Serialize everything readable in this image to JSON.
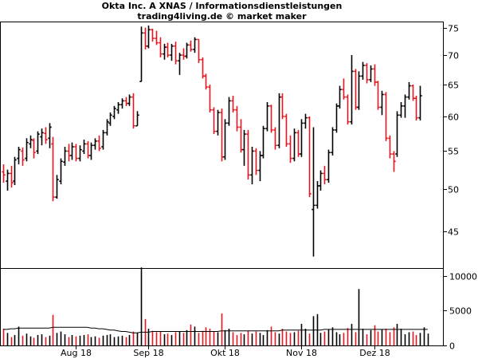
{
  "chart_data": [
    {
      "type": "ohlc-bar",
      "title": "Okta Inc. A XNAS / Informationsdienstleistungen",
      "subtitle": "trading4living.de © market maker",
      "y_ticks": [
        75,
        70,
        65,
        60,
        55,
        50,
        45
      ],
      "ylim": [
        41,
        76
      ],
      "x_ticks": [
        "Aug 18",
        "Sep 18",
        "Okt 18",
        "Nov 18",
        "Dez 18"
      ],
      "up_color": "#000000",
      "down_color": "#e8141e",
      "bars": [
        {
          "o": 52.2,
          "h": 53.2,
          "l": 50.8,
          "c": 51.8,
          "up": false
        },
        {
          "o": 51.0,
          "h": 52.5,
          "l": 49.8,
          "c": 52.0,
          "up": true
        },
        {
          "o": 52.0,
          "h": 53.0,
          "l": 50.2,
          "c": 50.8,
          "up": false
        },
        {
          "o": 51.0,
          "h": 54.2,
          "l": 50.5,
          "c": 53.8,
          "up": true
        },
        {
          "o": 54.0,
          "h": 55.6,
          "l": 53.2,
          "c": 55.2,
          "up": true
        },
        {
          "o": 55.0,
          "h": 55.5,
          "l": 53.0,
          "c": 53.8,
          "up": false
        },
        {
          "o": 54.0,
          "h": 56.8,
          "l": 53.6,
          "c": 56.2,
          "up": true
        },
        {
          "o": 56.0,
          "h": 57.2,
          "l": 55.4,
          "c": 56.6,
          "up": true
        },
        {
          "o": 56.5,
          "h": 56.8,
          "l": 54.0,
          "c": 54.8,
          "up": false
        },
        {
          "o": 55.0,
          "h": 57.8,
          "l": 54.6,
          "c": 57.4,
          "up": true
        },
        {
          "o": 57.0,
          "h": 58.2,
          "l": 55.8,
          "c": 57.6,
          "up": true
        },
        {
          "o": 57.5,
          "h": 58.4,
          "l": 56.0,
          "c": 56.6,
          "up": false
        },
        {
          "o": 56.8,
          "h": 59.0,
          "l": 55.4,
          "c": 58.4,
          "up": true
        },
        {
          "o": 56.0,
          "h": 57.0,
          "l": 48.5,
          "c": 49.0,
          "up": false
        },
        {
          "o": 49.0,
          "h": 51.8,
          "l": 48.8,
          "c": 51.2,
          "up": true
        },
        {
          "o": 51.0,
          "h": 54.0,
          "l": 50.6,
          "c": 53.6,
          "up": true
        },
        {
          "o": 53.5,
          "h": 55.6,
          "l": 53.0,
          "c": 55.0,
          "up": true
        },
        {
          "o": 55.0,
          "h": 56.0,
          "l": 53.6,
          "c": 54.4,
          "up": false
        },
        {
          "o": 54.4,
          "h": 56.2,
          "l": 53.8,
          "c": 55.6,
          "up": true
        },
        {
          "o": 55.6,
          "h": 56.0,
          "l": 53.6,
          "c": 54.0,
          "up": false
        },
        {
          "o": 54.0,
          "h": 55.8,
          "l": 53.6,
          "c": 55.2,
          "up": true
        },
        {
          "o": 55.0,
          "h": 56.6,
          "l": 54.6,
          "c": 56.0,
          "up": true
        },
        {
          "o": 56.0,
          "h": 56.4,
          "l": 54.0,
          "c": 54.4,
          "up": false
        },
        {
          "o": 54.4,
          "h": 56.2,
          "l": 53.8,
          "c": 55.8,
          "up": true
        },
        {
          "o": 55.8,
          "h": 56.8,
          "l": 55.2,
          "c": 56.4,
          "up": true
        },
        {
          "o": 56.4,
          "h": 57.2,
          "l": 55.0,
          "c": 55.4,
          "up": false
        },
        {
          "o": 55.6,
          "h": 58.0,
          "l": 55.2,
          "c": 57.6,
          "up": true
        },
        {
          "o": 57.6,
          "h": 59.6,
          "l": 57.2,
          "c": 59.2,
          "up": true
        },
        {
          "o": 59.0,
          "h": 60.6,
          "l": 58.6,
          "c": 60.2,
          "up": true
        },
        {
          "o": 60.0,
          "h": 61.6,
          "l": 59.6,
          "c": 61.2,
          "up": true
        },
        {
          "o": 61.0,
          "h": 62.2,
          "l": 60.4,
          "c": 61.8,
          "up": true
        },
        {
          "o": 61.8,
          "h": 62.8,
          "l": 61.2,
          "c": 62.4,
          "up": true
        },
        {
          "o": 62.4,
          "h": 63.0,
          "l": 61.6,
          "c": 62.0,
          "up": false
        },
        {
          "o": 62.0,
          "h": 63.4,
          "l": 61.6,
          "c": 63.0,
          "up": true
        },
        {
          "o": 63.0,
          "h": 63.6,
          "l": 58.2,
          "c": 58.6,
          "up": false
        },
        {
          "o": 58.6,
          "h": 60.8,
          "l": 58.6,
          "c": 60.2,
          "up": true
        },
        {
          "o": 65.5,
          "h": 75.2,
          "l": 65.5,
          "c": 74.0,
          "up": true
        },
        {
          "o": 74.0,
          "h": 75.0,
          "l": 71.0,
          "c": 71.6,
          "up": false
        },
        {
          "o": 71.6,
          "h": 75.4,
          "l": 71.2,
          "c": 74.6,
          "up": true
        },
        {
          "o": 74.6,
          "h": 74.8,
          "l": 72.4,
          "c": 73.0,
          "up": false
        },
        {
          "o": 73.0,
          "h": 74.4,
          "l": 71.8,
          "c": 72.2,
          "up": false
        },
        {
          "o": 72.2,
          "h": 73.2,
          "l": 69.6,
          "c": 70.2,
          "up": false
        },
        {
          "o": 70.2,
          "h": 72.0,
          "l": 69.2,
          "c": 71.4,
          "up": true
        },
        {
          "o": 71.4,
          "h": 72.2,
          "l": 69.6,
          "c": 70.0,
          "up": false
        },
        {
          "o": 70.0,
          "h": 72.0,
          "l": 69.0,
          "c": 71.6,
          "up": true
        },
        {
          "o": 71.6,
          "h": 72.4,
          "l": 68.4,
          "c": 69.0,
          "up": false
        },
        {
          "o": 69.0,
          "h": 70.4,
          "l": 66.6,
          "c": 70.0,
          "up": true
        },
        {
          "o": 70.0,
          "h": 71.2,
          "l": 69.2,
          "c": 69.8,
          "up": false
        },
        {
          "o": 69.8,
          "h": 72.2,
          "l": 69.4,
          "c": 71.8,
          "up": true
        },
        {
          "o": 71.8,
          "h": 72.6,
          "l": 70.6,
          "c": 71.0,
          "up": false
        },
        {
          "o": 71.0,
          "h": 73.2,
          "l": 70.4,
          "c": 72.8,
          "up": true
        },
        {
          "o": 72.8,
          "h": 72.8,
          "l": 68.6,
          "c": 69.2,
          "up": false
        },
        {
          "o": 69.2,
          "h": 69.6,
          "l": 66.0,
          "c": 66.4,
          "up": false
        },
        {
          "o": 66.4,
          "h": 66.8,
          "l": 64.2,
          "c": 64.6,
          "up": false
        },
        {
          "o": 64.6,
          "h": 65.0,
          "l": 60.6,
          "c": 61.0,
          "up": false
        },
        {
          "o": 61.0,
          "h": 61.4,
          "l": 57.4,
          "c": 57.8,
          "up": false
        },
        {
          "o": 57.8,
          "h": 61.0,
          "l": 57.2,
          "c": 60.6,
          "up": true
        },
        {
          "o": 60.6,
          "h": 61.2,
          "l": 53.6,
          "c": 54.2,
          "up": false
        },
        {
          "o": 54.2,
          "h": 59.6,
          "l": 53.8,
          "c": 59.0,
          "up": true
        },
        {
          "o": 59.0,
          "h": 63.0,
          "l": 58.6,
          "c": 62.4,
          "up": true
        },
        {
          "o": 62.4,
          "h": 63.2,
          "l": 60.6,
          "c": 61.0,
          "up": false
        },
        {
          "o": 61.0,
          "h": 61.6,
          "l": 57.8,
          "c": 58.4,
          "up": false
        },
        {
          "o": 58.4,
          "h": 59.6,
          "l": 54.8,
          "c": 55.2,
          "up": false
        },
        {
          "o": 55.2,
          "h": 58.0,
          "l": 53.0,
          "c": 57.4,
          "up": true
        },
        {
          "o": 57.4,
          "h": 58.0,
          "l": 51.2,
          "c": 51.8,
          "up": false
        },
        {
          "o": 51.8,
          "h": 55.6,
          "l": 50.6,
          "c": 55.0,
          "up": true
        },
        {
          "o": 55.0,
          "h": 55.4,
          "l": 51.8,
          "c": 52.4,
          "up": false
        },
        {
          "o": 52.4,
          "h": 55.0,
          "l": 51.0,
          "c": 54.4,
          "up": true
        },
        {
          "o": 54.4,
          "h": 58.6,
          "l": 54.0,
          "c": 58.2,
          "up": true
        },
        {
          "o": 58.2,
          "h": 62.2,
          "l": 57.8,
          "c": 61.6,
          "up": true
        },
        {
          "o": 61.6,
          "h": 61.8,
          "l": 57.6,
          "c": 58.0,
          "up": false
        },
        {
          "o": 58.0,
          "h": 58.4,
          "l": 55.2,
          "c": 55.8,
          "up": false
        },
        {
          "o": 55.8,
          "h": 63.6,
          "l": 55.4,
          "c": 63.0,
          "up": true
        },
        {
          "o": 63.0,
          "h": 63.6,
          "l": 59.6,
          "c": 60.0,
          "up": false
        },
        {
          "o": 60.0,
          "h": 60.4,
          "l": 55.6,
          "c": 56.0,
          "up": false
        },
        {
          "o": 56.0,
          "h": 57.2,
          "l": 53.4,
          "c": 54.0,
          "up": false
        },
        {
          "o": 54.0,
          "h": 58.2,
          "l": 53.6,
          "c": 57.6,
          "up": true
        },
        {
          "o": 57.6,
          "h": 58.0,
          "l": 54.2,
          "c": 54.6,
          "up": false
        },
        {
          "o": 54.6,
          "h": 59.6,
          "l": 54.2,
          "c": 59.0,
          "up": true
        },
        {
          "o": 59.0,
          "h": 60.4,
          "l": 58.2,
          "c": 59.8,
          "up": true
        },
        {
          "o": 59.8,
          "h": 60.0,
          "l": 49.0,
          "c": 49.4,
          "up": false
        },
        {
          "o": 47.5,
          "h": 58.4,
          "l": 42.2,
          "c": 48.0,
          "up": true
        },
        {
          "o": 48.0,
          "h": 51.0,
          "l": 47.6,
          "c": 50.4,
          "up": true
        },
        {
          "o": 50.4,
          "h": 52.4,
          "l": 49.8,
          "c": 52.0,
          "up": true
        },
        {
          "o": 52.0,
          "h": 53.0,
          "l": 50.6,
          "c": 51.2,
          "up": false
        },
        {
          "o": 51.2,
          "h": 55.2,
          "l": 50.8,
          "c": 54.8,
          "up": true
        },
        {
          "o": 54.8,
          "h": 58.4,
          "l": 54.4,
          "c": 58.0,
          "up": true
        },
        {
          "o": 58.0,
          "h": 62.0,
          "l": 57.6,
          "c": 61.6,
          "up": true
        },
        {
          "o": 61.6,
          "h": 64.8,
          "l": 61.2,
          "c": 64.2,
          "up": true
        },
        {
          "o": 64.2,
          "h": 66.0,
          "l": 62.6,
          "c": 63.0,
          "up": false
        },
        {
          "o": 63.0,
          "h": 63.4,
          "l": 58.8,
          "c": 59.2,
          "up": false
        },
        {
          "o": 59.2,
          "h": 70.0,
          "l": 58.8,
          "c": 67.2,
          "up": true
        },
        {
          "o": 67.2,
          "h": 67.6,
          "l": 61.0,
          "c": 61.4,
          "up": false
        },
        {
          "o": 61.4,
          "h": 67.2,
          "l": 61.0,
          "c": 66.4,
          "up": true
        },
        {
          "o": 66.4,
          "h": 68.8,
          "l": 65.8,
          "c": 68.2,
          "up": true
        },
        {
          "o": 68.2,
          "h": 68.6,
          "l": 65.2,
          "c": 65.8,
          "up": false
        },
        {
          "o": 65.8,
          "h": 68.2,
          "l": 65.4,
          "c": 67.6,
          "up": true
        },
        {
          "o": 67.6,
          "h": 68.4,
          "l": 64.8,
          "c": 65.4,
          "up": false
        },
        {
          "o": 65.4,
          "h": 65.6,
          "l": 61.0,
          "c": 61.4,
          "up": false
        },
        {
          "o": 61.4,
          "h": 64.0,
          "l": 60.2,
          "c": 63.4,
          "up": true
        },
        {
          "o": 63.4,
          "h": 63.8,
          "l": 56.4,
          "c": 56.8,
          "up": false
        },
        {
          "o": 56.8,
          "h": 57.2,
          "l": 54.0,
          "c": 54.6,
          "up": false
        },
        {
          "o": 54.6,
          "h": 55.0,
          "l": 52.2,
          "c": 53.6,
          "up": false
        },
        {
          "o": 54.6,
          "h": 60.8,
          "l": 54.2,
          "c": 60.2,
          "up": true
        },
        {
          "o": 60.2,
          "h": 62.2,
          "l": 59.8,
          "c": 61.6,
          "up": true
        },
        {
          "o": 61.6,
          "h": 63.4,
          "l": 59.8,
          "c": 63.0,
          "up": true
        },
        {
          "o": 63.0,
          "h": 65.4,
          "l": 62.6,
          "c": 64.8,
          "up": true
        },
        {
          "o": 64.8,
          "h": 65.0,
          "l": 62.4,
          "c": 62.8,
          "up": false
        },
        {
          "o": 62.8,
          "h": 63.2,
          "l": 59.4,
          "c": 59.8,
          "up": false
        },
        {
          "o": 59.8,
          "h": 64.8,
          "l": 59.4,
          "c": 63.2,
          "up": true
        }
      ]
    },
    {
      "type": "bar",
      "y_ticks": [
        10000,
        5000,
        0
      ],
      "ylim": [
        0,
        11000
      ],
      "values": [
        2400,
        1800,
        1200,
        1500,
        2700,
        1400,
        1700,
        1300,
        1100,
        1500,
        1600,
        1200,
        1400,
        4400,
        1800,
        2000,
        1600,
        1200,
        1500,
        1300,
        1400,
        1500,
        1600,
        1200,
        1300,
        1100,
        1400,
        1500,
        1600,
        1200,
        1300,
        1400,
        1200,
        1500,
        2000,
        1800,
        11200,
        3800,
        2400,
        2100,
        1900,
        2000,
        1600,
        1700,
        1500,
        1900,
        2000,
        1800,
        2200,
        3000,
        2700,
        1800,
        2100,
        2600,
        2400,
        2000,
        1900,
        4600,
        2200,
        2400,
        1900,
        1500,
        1800,
        1600,
        2100,
        1700,
        2000,
        1800,
        1500,
        2200,
        2700,
        1900,
        1700,
        2400,
        2000,
        1800,
        1900,
        2100,
        3100,
        2400,
        1700,
        4200,
        4500,
        1800,
        2000,
        2300,
        2600,
        1900,
        1600,
        1800,
        2500,
        3100,
        1900,
        8100,
        2400,
        1600,
        2200,
        2900,
        2000,
        2300,
        2400,
        1900,
        2600,
        3100,
        2400,
        1600,
        1900,
        2000,
        1500,
        1800,
        2600,
        1700
      ],
      "average": [
        2300,
        2300,
        2400,
        2400,
        2500,
        2500,
        2500,
        2500,
        2500,
        2500,
        2500,
        2500,
        2500,
        2600,
        2600,
        2600,
        2600,
        2600,
        2600,
        2600,
        2600,
        2600,
        2600,
        2500,
        2500,
        2400,
        2400,
        2300,
        2200,
        2200,
        2100,
        2000,
        2000,
        1900,
        1800,
        1800,
        1900,
        1900,
        1900,
        2000,
        2000,
        2000,
        2000,
        2000,
        2000,
        2000,
        2000,
        2000,
        2000,
        2000,
        2000,
        2000,
        2000,
        2000,
        2000,
        2000,
        2000,
        2100,
        2100,
        2100,
        2100,
        2100,
        2100,
        2100,
        2100,
        2100,
        2100,
        2100,
        2100,
        2100,
        2100,
        2100,
        2100,
        2200,
        2200,
        2200,
        2200,
        2200,
        2200,
        2200,
        2200,
        2200,
        2200,
        2200,
        2300,
        2300,
        2300,
        2300,
        2300,
        2300,
        2300,
        2300,
        2300,
        2300,
        2300,
        2300,
        2300,
        2300,
        2300,
        2300,
        2300,
        2300,
        2300,
        2300,
        2300,
        2300,
        2300,
        2300,
        2300,
        2300,
        2300,
        2300
      ]
    }
  ]
}
